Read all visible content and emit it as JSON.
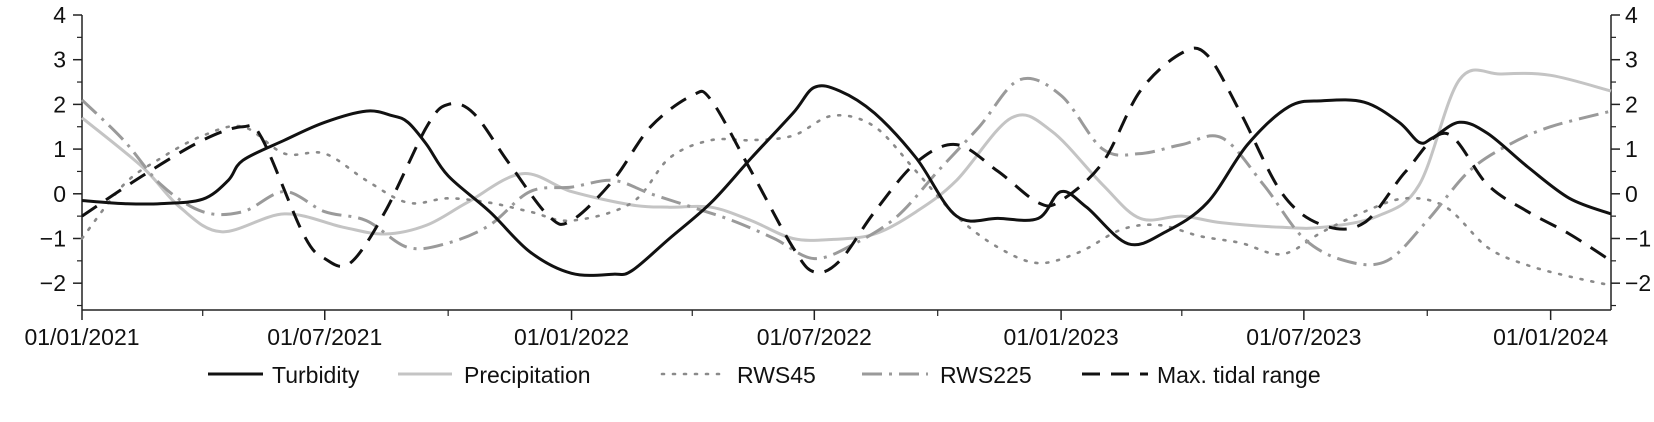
{
  "chart_data": {
    "type": "line",
    "title": "",
    "xlabel": "",
    "ylabel": "",
    "x_axis": {
      "type": "date",
      "min": "2021-01-01",
      "max": "2024-02-15",
      "ticks": [
        "2021-01-01",
        "2021-07-01",
        "2022-01-01",
        "2022-07-01",
        "2023-01-01",
        "2023-07-01",
        "2024-01-01"
      ],
      "tick_labels": [
        "01/01/2021",
        "01/07/2021",
        "01/01/2022",
        "01/07/2022",
        "01/01/2023",
        "01/07/2023",
        "01/01/2024"
      ],
      "minor_ticks": [
        "2021-04-01",
        "2021-10-01",
        "2022-04-01",
        "2022-10-01",
        "2023-04-01",
        "2023-10-01"
      ]
    },
    "y_axis": {
      "min": -2.6,
      "max": 4,
      "ticks": [
        -2,
        -1,
        0,
        1,
        2,
        3,
        4
      ],
      "tick_labels": [
        "−2",
        "−1",
        "0",
        "1",
        "2",
        "3",
        "4"
      ],
      "mirrored_right": true
    },
    "grid": false,
    "legend_position": "bottom",
    "series": [
      {
        "name": "Turbidity",
        "color": "#111111",
        "dash": "solid",
        "points": [
          [
            "2021-01-01",
            -0.15
          ],
          [
            "2021-02-01",
            -0.22
          ],
          [
            "2021-03-01",
            -0.22
          ],
          [
            "2021-04-01",
            -0.12
          ],
          [
            "2021-04-20",
            0.3
          ],
          [
            "2021-05-01",
            0.75
          ],
          [
            "2021-06-01",
            1.2
          ],
          [
            "2021-07-01",
            1.6
          ],
          [
            "2021-08-01",
            1.85
          ],
          [
            "2021-08-20",
            1.75
          ],
          [
            "2021-09-01",
            1.6
          ],
          [
            "2021-09-15",
            1.1
          ],
          [
            "2021-10-01",
            0.4
          ],
          [
            "2021-11-01",
            -0.4
          ],
          [
            "2021-12-01",
            -1.3
          ],
          [
            "2022-01-01",
            -1.78
          ],
          [
            "2022-02-01",
            -1.8
          ],
          [
            "2022-02-15",
            -1.72
          ],
          [
            "2022-03-15",
            -1.0
          ],
          [
            "2022-04-15",
            -0.2
          ],
          [
            "2022-05-15",
            0.8
          ],
          [
            "2022-06-15",
            1.8
          ],
          [
            "2022-07-01",
            2.38
          ],
          [
            "2022-07-20",
            2.3
          ],
          [
            "2022-08-15",
            1.8
          ],
          [
            "2022-09-15",
            0.8
          ],
          [
            "2022-10-15",
            -0.5
          ],
          [
            "2022-11-15",
            -0.55
          ],
          [
            "2022-12-15",
            -0.55
          ],
          [
            "2023-01-01",
            0.05
          ],
          [
            "2023-01-20",
            -0.3
          ],
          [
            "2023-02-20",
            -1.12
          ],
          [
            "2023-03-20",
            -0.85
          ],
          [
            "2023-04-20",
            -0.2
          ],
          [
            "2023-05-20",
            1.1
          ],
          [
            "2023-06-20",
            1.95
          ],
          [
            "2023-07-15",
            2.08
          ],
          [
            "2023-08-15",
            2.05
          ],
          [
            "2023-09-10",
            1.6
          ],
          [
            "2023-09-25",
            1.15
          ],
          [
            "2023-10-05",
            1.25
          ],
          [
            "2023-10-25",
            1.6
          ],
          [
            "2023-11-15",
            1.35
          ],
          [
            "2023-12-15",
            0.6
          ],
          [
            "2024-01-15",
            -0.1
          ],
          [
            "2024-02-15",
            -0.45
          ]
        ]
      },
      {
        "name": "Precipitation",
        "color": "#c4c4c4",
        "dash": "solid",
        "points": [
          [
            "2021-01-01",
            1.7
          ],
          [
            "2021-02-15",
            0.6
          ],
          [
            "2021-03-15",
            -0.3
          ],
          [
            "2021-04-15",
            -0.85
          ],
          [
            "2021-06-01",
            -0.45
          ],
          [
            "2021-07-15",
            -0.75
          ],
          [
            "2021-08-15",
            -0.9
          ],
          [
            "2021-09-15",
            -0.7
          ],
          [
            "2021-10-15",
            -0.2
          ],
          [
            "2021-11-25",
            0.45
          ],
          [
            "2022-01-01",
            0.05
          ],
          [
            "2022-02-15",
            -0.25
          ],
          [
            "2022-03-15",
            -0.3
          ],
          [
            "2022-04-15",
            -0.3
          ],
          [
            "2022-05-15",
            -0.6
          ],
          [
            "2022-06-15",
            -1.0
          ],
          [
            "2022-07-15",
            -1.02
          ],
          [
            "2022-08-15",
            -0.9
          ],
          [
            "2022-09-15",
            -0.4
          ],
          [
            "2022-10-15",
            0.3
          ],
          [
            "2022-11-25",
            1.7
          ],
          [
            "2022-12-25",
            1.4
          ],
          [
            "2023-02-01",
            0.2
          ],
          [
            "2023-03-01",
            -0.55
          ],
          [
            "2023-04-01",
            -0.5
          ],
          [
            "2023-05-01",
            -0.65
          ],
          [
            "2023-06-15",
            -0.75
          ],
          [
            "2023-07-15",
            -0.75
          ],
          [
            "2023-08-25",
            -0.5
          ],
          [
            "2023-09-25",
            0.2
          ],
          [
            "2023-10-25",
            2.55
          ],
          [
            "2023-11-25",
            2.68
          ],
          [
            "2024-01-01",
            2.65
          ],
          [
            "2024-02-15",
            2.3
          ]
        ]
      },
      {
        "name": "RWS45",
        "color": "#8a8a8a",
        "dash": "dot",
        "points": [
          [
            "2021-01-01",
            -1.0
          ],
          [
            "2021-02-01",
            0.2
          ],
          [
            "2021-03-01",
            0.8
          ],
          [
            "2021-04-01",
            1.3
          ],
          [
            "2021-05-01",
            1.5
          ],
          [
            "2021-06-01",
            0.9
          ],
          [
            "2021-07-01",
            0.9
          ],
          [
            "2021-08-01",
            0.3
          ],
          [
            "2021-09-01",
            -0.2
          ],
          [
            "2021-10-01",
            -0.1
          ],
          [
            "2021-11-01",
            -0.2
          ],
          [
            "2021-12-01",
            -0.4
          ],
          [
            "2022-01-01",
            -0.6
          ],
          [
            "2022-02-15",
            -0.2
          ],
          [
            "2022-03-15",
            0.8
          ],
          [
            "2022-04-15",
            1.2
          ],
          [
            "2022-05-15",
            1.2
          ],
          [
            "2022-06-15",
            1.3
          ],
          [
            "2022-07-15",
            1.75
          ],
          [
            "2022-08-15",
            1.5
          ],
          [
            "2022-09-15",
            0.5
          ],
          [
            "2022-10-15",
            -0.5
          ],
          [
            "2022-11-15",
            -1.2
          ],
          [
            "2022-12-15",
            -1.55
          ],
          [
            "2023-01-15",
            -1.3
          ],
          [
            "2023-02-15",
            -0.8
          ],
          [
            "2023-03-15",
            -0.7
          ],
          [
            "2023-04-15",
            -0.95
          ],
          [
            "2023-05-15",
            -1.1
          ],
          [
            "2023-06-15",
            -1.35
          ],
          [
            "2023-07-15",
            -0.85
          ],
          [
            "2023-08-15",
            -0.4
          ],
          [
            "2023-09-15",
            -0.1
          ],
          [
            "2023-10-15",
            -0.3
          ],
          [
            "2023-11-15",
            -1.2
          ],
          [
            "2023-12-15",
            -1.6
          ],
          [
            "2024-01-15",
            -1.85
          ],
          [
            "2024-02-15",
            -2.05
          ]
        ]
      },
      {
        "name": "RWS225",
        "color": "#9a9a9a",
        "dash": "dashdot",
        "points": [
          [
            "2021-01-01",
            2.1
          ],
          [
            "2021-02-01",
            1.2
          ],
          [
            "2021-03-01",
            0.2
          ],
          [
            "2021-04-01",
            -0.4
          ],
          [
            "2021-05-01",
            -0.4
          ],
          [
            "2021-06-01",
            0.05
          ],
          [
            "2021-07-01",
            -0.4
          ],
          [
            "2021-08-01",
            -0.6
          ],
          [
            "2021-09-01",
            -1.2
          ],
          [
            "2021-10-01",
            -1.1
          ],
          [
            "2021-11-01",
            -0.7
          ],
          [
            "2021-12-01",
            0.05
          ],
          [
            "2022-01-01",
            0.15
          ],
          [
            "2022-02-01",
            0.3
          ],
          [
            "2022-03-01",
            0.0
          ],
          [
            "2022-04-01",
            -0.3
          ],
          [
            "2022-05-01",
            -0.6
          ],
          [
            "2022-06-01",
            -1.0
          ],
          [
            "2022-07-01",
            -1.45
          ],
          [
            "2022-08-01",
            -1.1
          ],
          [
            "2022-09-01",
            -0.5
          ],
          [
            "2022-10-01",
            0.5
          ],
          [
            "2022-11-01",
            1.5
          ],
          [
            "2022-12-01",
            2.55
          ],
          [
            "2023-01-01",
            2.2
          ],
          [
            "2023-02-01",
            1.0
          ],
          [
            "2023-03-01",
            0.9
          ],
          [
            "2023-04-01",
            1.1
          ],
          [
            "2023-05-01",
            1.25
          ],
          [
            "2023-06-01",
            0.2
          ],
          [
            "2023-07-01",
            -1.0
          ],
          [
            "2023-08-01",
            -1.5
          ],
          [
            "2023-09-01",
            -1.5
          ],
          [
            "2023-10-01",
            -0.6
          ],
          [
            "2023-11-01",
            0.5
          ],
          [
            "2023-12-01",
            1.1
          ],
          [
            "2024-01-01",
            1.5
          ],
          [
            "2024-02-15",
            1.85
          ]
        ]
      },
      {
        "name": "Max. tidal range",
        "color": "#111111",
        "dash": "dash",
        "points": [
          [
            "2021-01-01",
            -0.5
          ],
          [
            "2021-02-15",
            0.4
          ],
          [
            "2021-04-01",
            1.2
          ],
          [
            "2021-05-01",
            1.5
          ],
          [
            "2021-05-15",
            1.25
          ],
          [
            "2021-06-15",
            -0.9
          ],
          [
            "2021-07-01",
            -1.45
          ],
          [
            "2021-07-20",
            -1.55
          ],
          [
            "2021-08-15",
            -0.4
          ],
          [
            "2021-09-15",
            1.5
          ],
          [
            "2021-10-01",
            2.0
          ],
          [
            "2021-10-20",
            1.8
          ],
          [
            "2021-11-15",
            0.7
          ],
          [
            "2021-12-15",
            -0.5
          ],
          [
            "2022-01-01",
            -0.6
          ],
          [
            "2022-02-01",
            0.3
          ],
          [
            "2022-03-01",
            1.5
          ],
          [
            "2022-04-01",
            2.2
          ],
          [
            "2022-04-15",
            2.1
          ],
          [
            "2022-05-15",
            0.5
          ],
          [
            "2022-06-15",
            -1.2
          ],
          [
            "2022-07-01",
            -1.75
          ],
          [
            "2022-07-20",
            -1.5
          ],
          [
            "2022-08-15",
            -0.4
          ],
          [
            "2022-09-15",
            0.7
          ],
          [
            "2022-10-15",
            1.1
          ],
          [
            "2022-11-15",
            0.5
          ],
          [
            "2022-12-15",
            -0.2
          ],
          [
            "2023-01-01",
            -0.15
          ],
          [
            "2023-02-01",
            0.7
          ],
          [
            "2023-03-01",
            2.3
          ],
          [
            "2023-04-01",
            3.15
          ],
          [
            "2023-04-20",
            3.1
          ],
          [
            "2023-05-15",
            1.8
          ],
          [
            "2023-06-15",
            0.0
          ],
          [
            "2023-07-15",
            -0.7
          ],
          [
            "2023-08-15",
            -0.65
          ],
          [
            "2023-09-15",
            0.5
          ],
          [
            "2023-10-15",
            1.35
          ],
          [
            "2023-11-15",
            0.2
          ],
          [
            "2023-12-15",
            -0.4
          ],
          [
            "2024-01-15",
            -0.9
          ],
          [
            "2024-02-15",
            -1.5
          ]
        ]
      }
    ]
  }
}
